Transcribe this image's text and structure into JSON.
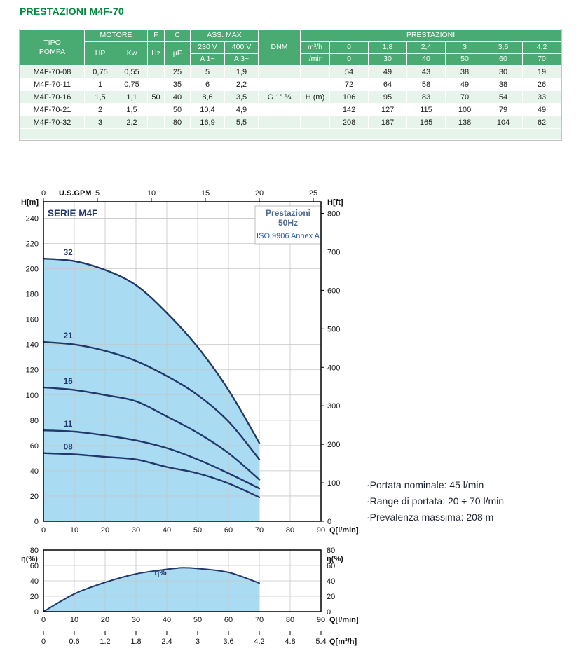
{
  "page_title": "PRESTAZIONI M4F-70",
  "colors": {
    "title_green": "#008a42",
    "header_green": "#4aab72",
    "row_green": "#e7f4ec",
    "curve": "#22386b",
    "fill": "#a9dcf2",
    "grid": "#c6c6c6",
    "subtitle_blue": "#4d6a8f",
    "iso_blue": "#2f5fae"
  },
  "table": {
    "headers": {
      "tipo": "TIPO\nPOMPA",
      "motore": "MOTORE",
      "hp": "HP",
      "kw": "Kw",
      "f": "F",
      "hz": "Hz",
      "c": "C",
      "uf": "µF",
      "ass_max": "ASS. MAX",
      "v230": "230 V",
      "v400": "400 V",
      "a1": "A 1~",
      "a3": "A 3~",
      "dnm": "DNM",
      "prestazioni": "PRESTAZIONI",
      "m3h": "m³/h",
      "lmin": "l/min",
      "m3h_vals": [
        "0",
        "1,8",
        "2,4",
        "3",
        "3,6",
        "4,2"
      ],
      "lmin_vals": [
        "0",
        "30",
        "40",
        "50",
        "60",
        "70"
      ]
    },
    "rows": [
      {
        "tipo": "M4F-70-08",
        "hp": "0,75",
        "kw": "0,55",
        "f": "",
        "c": "25",
        "a1": "5",
        "a3": "1,9",
        "dnm": "",
        "h": "",
        "values": [
          "54",
          "49",
          "43",
          "38",
          "30",
          "19"
        ]
      },
      {
        "tipo": "M4F-70-11",
        "hp": "1",
        "kw": "0,75",
        "f": "",
        "c": "35",
        "a1": "6",
        "a3": "2,2",
        "dnm": "",
        "h": "",
        "values": [
          "72",
          "64",
          "58",
          "49",
          "38",
          "26"
        ]
      },
      {
        "tipo": "M4F-70-16",
        "hp": "1,5",
        "kw": "1,1",
        "f": "50",
        "c": "40",
        "a1": "8,6",
        "a3": "3,5",
        "dnm": "G 1\" ¼",
        "h": "H (m)",
        "values": [
          "106",
          "95",
          "83",
          "70",
          "54",
          "33"
        ]
      },
      {
        "tipo": "M4F-70-21",
        "hp": "2",
        "kw": "1,5",
        "f": "",
        "c": "50",
        "a1": "10,4",
        "a3": "4,9",
        "dnm": "",
        "h": "",
        "values": [
          "142",
          "127",
          "115",
          "100",
          "79",
          "49"
        ]
      },
      {
        "tipo": "M4F-70-32",
        "hp": "3",
        "kw": "2,2",
        "f": "",
        "c": "80",
        "a1": "16,9",
        "a3": "5,5",
        "dnm": "",
        "h": "",
        "values": [
          "208",
          "187",
          "165",
          "138",
          "104",
          "62"
        ]
      }
    ]
  },
  "chart_data": [
    {
      "type": "line",
      "title": "SERIE M4F",
      "subtitle1": "Prestazioni",
      "subtitle2": "50Hz",
      "note": "ISO 9906 Annex A",
      "xlabel": "Q[l/min]",
      "xlabel_top": "U.S.GPM",
      "ylabel_left": "H[m]",
      "ylabel_right": "H[ft]",
      "xlim": [
        0,
        90
      ],
      "ylim": [
        0,
        253
      ],
      "x": [
        0,
        10,
        20,
        30,
        40,
        50,
        60,
        70
      ],
      "series": [
        {
          "name": "32",
          "values": [
            208,
            206,
            199,
            187,
            165,
            138,
            104,
            62
          ]
        },
        {
          "name": "21",
          "values": [
            142,
            140,
            135,
            127,
            115,
            100,
            79,
            49
          ]
        },
        {
          "name": "16",
          "values": [
            106,
            104,
            100,
            95,
            83,
            70,
            54,
            33
          ]
        },
        {
          "name": "11",
          "values": [
            72,
            71,
            68,
            64,
            58,
            49,
            38,
            26
          ]
        },
        {
          "name": "08",
          "values": [
            54,
            53,
            51,
            49,
            43,
            38,
            30,
            19
          ]
        }
      ],
      "x_ticks": [
        0,
        10,
        20,
        30,
        40,
        50,
        60,
        70,
        80,
        90
      ],
      "gpm_ticks": [
        0,
        5,
        10,
        15,
        20,
        25
      ],
      "gpm_to_lmin": 3.5,
      "y_ticks_m": [
        0,
        20,
        40,
        60,
        80,
        100,
        120,
        140,
        160,
        180,
        200,
        220,
        240
      ],
      "y_ticks_ft": [
        0,
        100,
        200,
        300,
        400,
        500,
        600,
        700,
        800
      ],
      "grid": true,
      "legend": "curve labels inline"
    },
    {
      "type": "area",
      "curve_label": "η%",
      "ylabel_left": "η(%)",
      "ylabel_right": "η(%)",
      "xlabel": "Q[l/min]",
      "xlabel2": "Q[m³/h]",
      "xlim": [
        0,
        90
      ],
      "ylim": [
        0,
        80
      ],
      "x": [
        0,
        10,
        20,
        30,
        40,
        45,
        50,
        60,
        70
      ],
      "values": [
        0,
        23,
        38,
        49,
        55,
        57,
        56,
        51,
        37
      ],
      "x_ticks": [
        0,
        10,
        20,
        30,
        40,
        50,
        60,
        70,
        80,
        90
      ],
      "y_ticks": [
        0,
        20,
        40,
        60,
        80
      ],
      "m3h_ticks": [
        "0",
        "0.6",
        "1.2",
        "1.8",
        "2.4",
        "3",
        "3.6",
        "4.2",
        "4.8",
        "5.4"
      ],
      "grid": true
    }
  ],
  "notes": [
    "·Portata nominale: 45 l/min",
    "·Range di portata: 20 ÷ 70 l/min",
    "·Prevalenza massima: 208 m"
  ]
}
